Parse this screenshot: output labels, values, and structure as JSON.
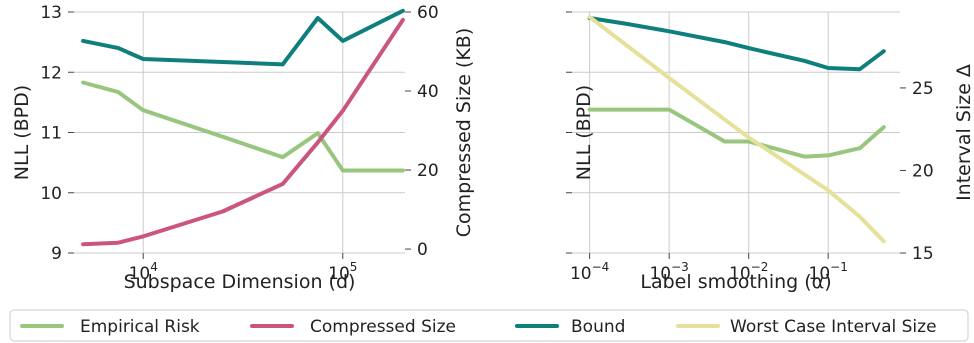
{
  "colors": {
    "empirical_risk": "#98c67e",
    "compressed_size": "#cc5580",
    "bound": "#0e7f7c",
    "worst_case_interval": "#e6e19a"
  },
  "legend": {
    "items": [
      {
        "key": "empirical_risk",
        "label": "Empirical Risk"
      },
      {
        "key": "compressed_size",
        "label": "Compressed Size"
      },
      {
        "key": "bound",
        "label": "Bound"
      },
      {
        "key": "worst_case_interval",
        "label": "Worst Case Interval Size"
      }
    ]
  },
  "chart_data": [
    {
      "type": "line",
      "xlabel": "Subspace Dimension (d)",
      "ylabel": "NLL (BPD)",
      "y2label": "Compressed Size (KB)",
      "xscale": "log",
      "xlim": [
        4500,
        205000
      ],
      "ylim": [
        9,
        13
      ],
      "y2lim": [
        -1,
        60
      ],
      "xticks": [
        {
          "value": 10000,
          "base": "10",
          "exp": "4"
        },
        {
          "value": 100000,
          "base": "10",
          "exp": "5"
        }
      ],
      "yticks": [
        9,
        10,
        11,
        12,
        13
      ],
      "y2ticks": [
        0,
        20,
        40,
        60
      ],
      "grid": true,
      "series": [
        {
          "key": "empirical_risk",
          "axis": "left",
          "x": [
            5000,
            7500,
            10000,
            25000,
            50000,
            75000,
            100000,
            200000
          ],
          "values": [
            11.83,
            11.67,
            11.37,
            10.93,
            10.59,
            10.99,
            10.37,
            10.37
          ]
        },
        {
          "key": "bound",
          "axis": "left",
          "x": [
            5000,
            7500,
            10000,
            25000,
            50000,
            75000,
            100000,
            200000
          ],
          "values": [
            12.52,
            12.4,
            12.22,
            12.17,
            12.13,
            12.9,
            12.52,
            13.02
          ]
        },
        {
          "key": "compressed_size",
          "axis": "right",
          "x": [
            5000,
            7500,
            10000,
            25000,
            50000,
            75000,
            100000,
            200000
          ],
          "values": [
            1.2,
            1.6,
            3.2,
            9.5,
            16.5,
            27,
            35,
            58
          ]
        }
      ]
    },
    {
      "type": "line",
      "xlabel": "Label smoothing (α)",
      "ylabel": "NLL (BPD)",
      "y2label": "Interval Size Δ",
      "xscale": "log",
      "xlim": [
        6e-05,
        0.8
      ],
      "ylim": [
        9,
        13
      ],
      "y2lim": [
        15,
        29.6
      ],
      "xticks": [
        {
          "value": 0.0001,
          "base": "10",
          "exp": "−4"
        },
        {
          "value": 0.001,
          "base": "10",
          "exp": "−3"
        },
        {
          "value": 0.01,
          "base": "10",
          "exp": "−2"
        },
        {
          "value": 0.1,
          "base": "10",
          "exp": "−1"
        }
      ],
      "yticks": [
        9,
        10,
        11,
        12,
        13
      ],
      "y2ticks": [
        15,
        20,
        25
      ],
      "hide_left_tick_labels": true,
      "grid": true,
      "series": [
        {
          "key": "empirical_risk",
          "axis": "left",
          "x": [
            0.0001,
            0.0003,
            0.001,
            0.005,
            0.01,
            0.05,
            0.1,
            0.25,
            0.5
          ],
          "values": [
            11.38,
            11.38,
            11.38,
            10.85,
            10.85,
            10.6,
            10.62,
            10.74,
            11.09
          ]
        },
        {
          "key": "bound",
          "axis": "left",
          "x": [
            0.0001,
            0.0003,
            0.001,
            0.005,
            0.01,
            0.05,
            0.1,
            0.25,
            0.5
          ],
          "values": [
            12.9,
            12.8,
            12.68,
            12.5,
            12.4,
            12.19,
            12.07,
            12.05,
            12.35
          ]
        },
        {
          "key": "worst_case_interval",
          "axis": "right",
          "x": [
            0.0001,
            0.001,
            0.01,
            0.1,
            0.25,
            0.5
          ],
          "values": [
            29.3,
            25.6,
            22.0,
            18.8,
            17.2,
            15.7
          ]
        }
      ]
    }
  ]
}
